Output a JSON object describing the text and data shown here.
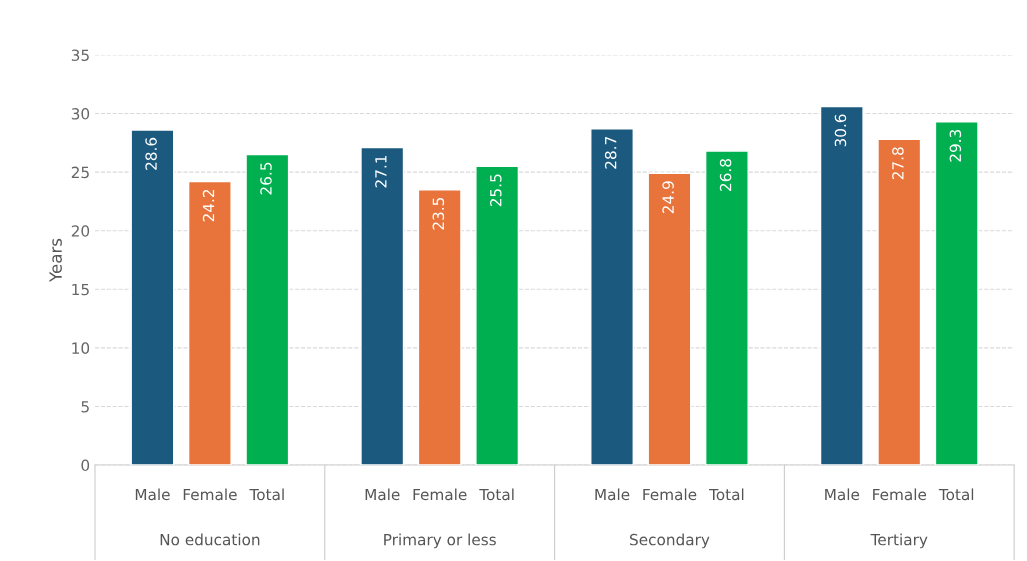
{
  "chart_data": {
    "type": "bar",
    "ylabel": "Years",
    "categories": [
      "No education",
      "Primary or less",
      "Secondary",
      "Tertiary"
    ],
    "series": [
      {
        "name": "Male",
        "color": "#1b5a7e",
        "values": [
          28.6,
          27.1,
          28.7,
          30.6
        ]
      },
      {
        "name": "Female",
        "color": "#e8743b",
        "values": [
          24.2,
          23.5,
          24.9,
          27.8
        ]
      },
      {
        "name": "Total",
        "color": "#00b050",
        "values": [
          26.5,
          25.5,
          26.8,
          29.3
        ]
      }
    ],
    "ylim": [
      0,
      35
    ],
    "yticks": [
      0,
      5,
      10,
      15,
      20,
      25,
      30,
      35
    ],
    "grid": "y",
    "data_labels": true,
    "legend": false
  }
}
